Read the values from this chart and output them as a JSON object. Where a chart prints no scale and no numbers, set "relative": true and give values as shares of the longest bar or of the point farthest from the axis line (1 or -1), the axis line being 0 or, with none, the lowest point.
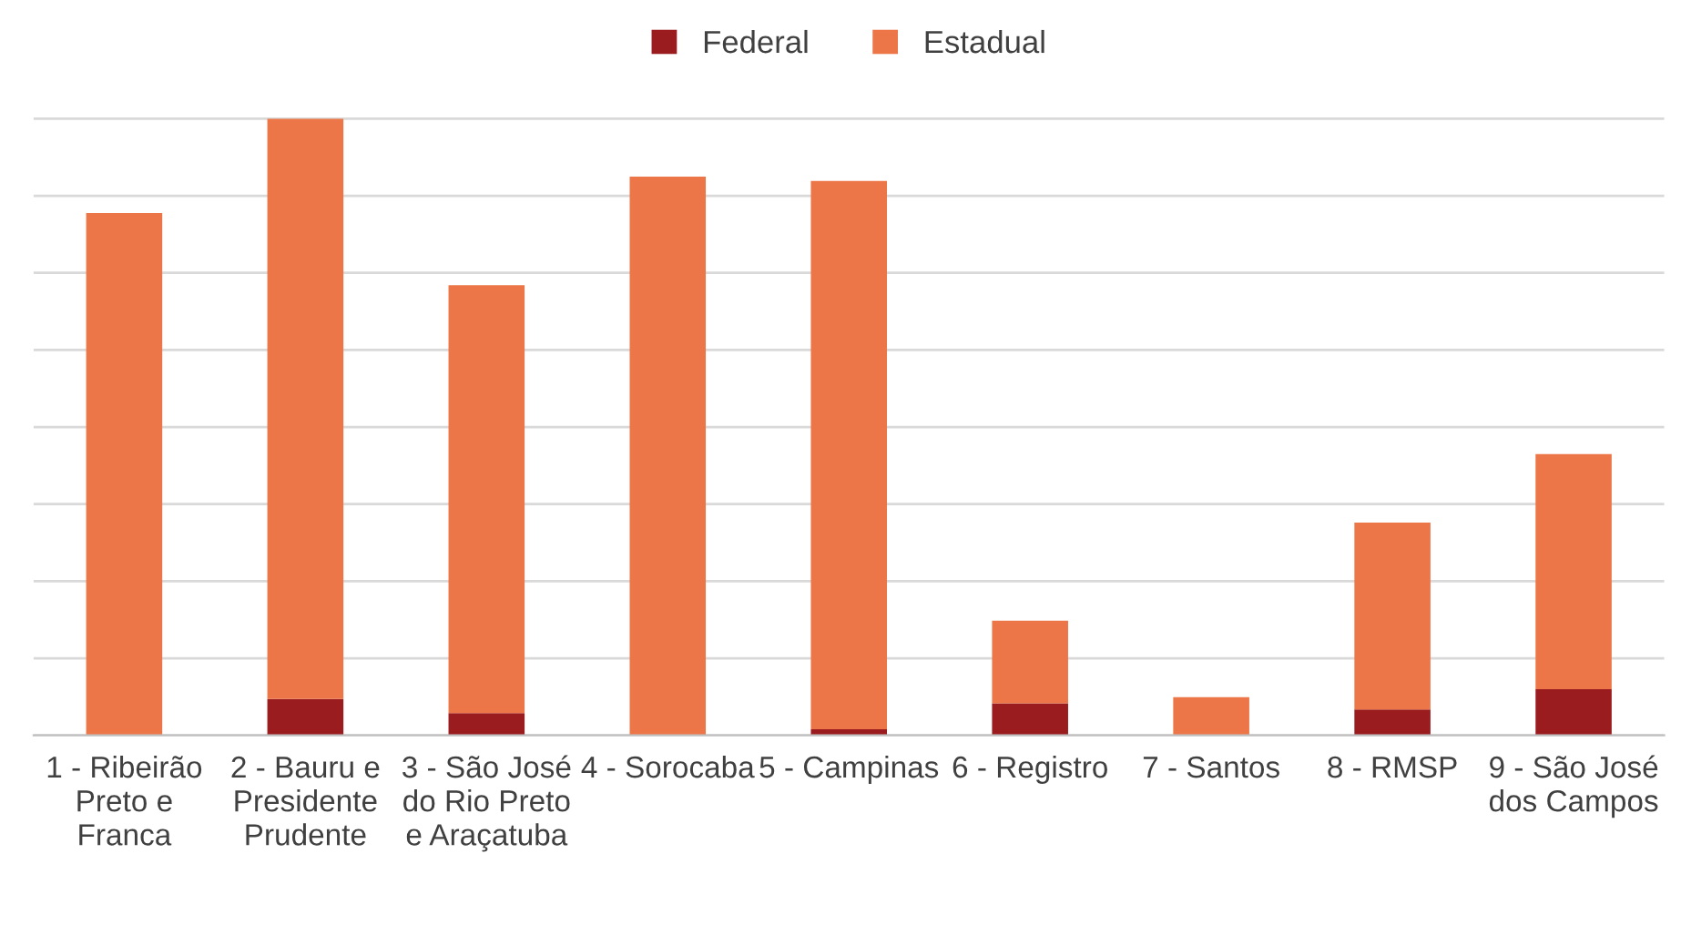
{
  "chart_data": {
    "type": "bar",
    "stacked": true,
    "relative": true,
    "grid": "y",
    "legend": "top",
    "categories": [
      "1 - Ribeirão Preto e Franca",
      "2 - Bauru e Presidente Prudente",
      "3 - São José do Rio Preto e Araçatuba",
      "4 - Sorocaba",
      "5 - Campinas",
      "6 - Registro",
      "7 - Santos",
      "8 - RMSP",
      "9 - São José dos Campos"
    ],
    "series": [
      {
        "name": "Federal",
        "color": "#9b1c1f",
        "values": [
          0,
          0.059,
          0.036,
          0,
          0.01,
          0.052,
          0,
          0.042,
          0.075
        ]
      },
      {
        "name": "Estadual",
        "color": "#ed7648",
        "values": [
          0.847,
          0.941,
          0.694,
          0.906,
          0.889,
          0.134,
          0.062,
          0.303,
          0.381
        ]
      }
    ]
  }
}
